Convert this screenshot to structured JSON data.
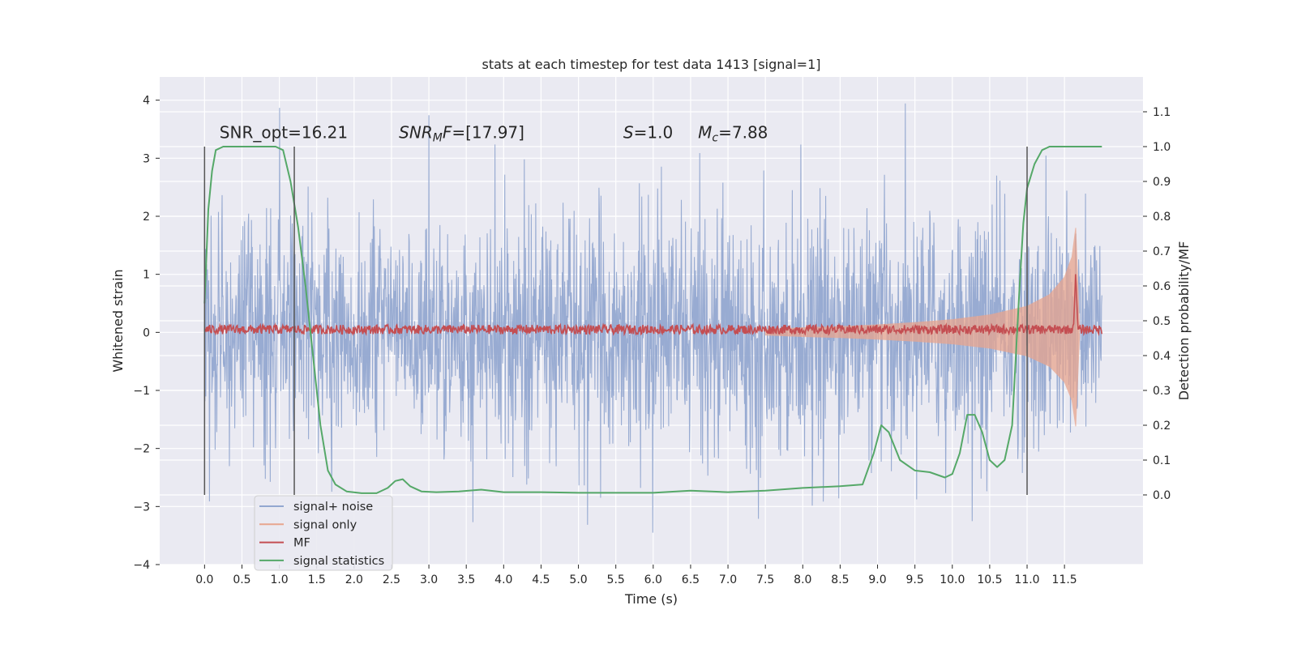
{
  "chart_data": {
    "type": "line",
    "title": "stats at each timestep for test data 1413 [signal=1]",
    "xlabel": "Time (s)",
    "ylabel": "Whitened strain",
    "y2label": "Detection probability/MF",
    "xlim": [
      -0.6,
      12.55
    ],
    "ylim": [
      -4.0,
      4.4
    ],
    "y2lim": [
      -0.2,
      1.2
    ],
    "x_ticks": [
      "0.0",
      "0.5",
      "1.0",
      "1.5",
      "2.0",
      "2.5",
      "3.0",
      "3.5",
      "4.0",
      "4.5",
      "5.0",
      "5.5",
      "6.0",
      "6.5",
      "7.0",
      "7.5",
      "8.0",
      "8.5",
      "9.0",
      "9.5",
      "10.0",
      "10.5",
      "11.0",
      "11.5"
    ],
    "y_ticks": [
      "4",
      "3",
      "2",
      "1",
      "0",
      "−1",
      "−2",
      "−3",
      "−4"
    ],
    "y2_ticks": [
      "1.1",
      "1.0",
      "0.9",
      "0.8",
      "0.7",
      "0.6",
      "0.5",
      "0.4",
      "0.3",
      "0.2",
      "0.1",
      "0.0"
    ],
    "grid": true,
    "legend_position": "lower-left",
    "colors": {
      "plot_bg": "#eaeaf2",
      "grid": "#ffffff",
      "signal_noise": "#93a8d0",
      "signal_only": "#e8a58e",
      "mf": "#c44e52",
      "stats": "#55a868",
      "vlines": "#555555"
    },
    "annotations": [
      {
        "text": "SNR_opt=16.21",
        "x": 0.2,
        "y": 3.35
      },
      {
        "text": "SNRMF=[17.97]",
        "x": 2.6,
        "y": 3.35
      },
      {
        "text": "S=1.0",
        "x": 5.6,
        "y": 3.35
      },
      {
        "text": "Mc=7.88",
        "x": 6.6,
        "y": 3.35
      }
    ],
    "vertical_lines": [
      0.0,
      1.2,
      11.0
    ],
    "series": [
      {
        "name": "signal+ noise",
        "description": "whitened noise with embedded signal, amplitude ~1 sigma, spikes to ~±3.5",
        "x_range": [
          0.0,
          12.0
        ],
        "typical_amplitude": 1.3,
        "peak_max": 4.1,
        "peak_min": -3.45
      },
      {
        "name": "signal only",
        "description": "chirp signal envelope growing from ~7.5s to merger at ~11.65s",
        "x": [
          7.5,
          8.0,
          8.5,
          9.0,
          9.5,
          10.0,
          10.5,
          11.0,
          11.3,
          11.5,
          11.6,
          11.65,
          11.7
        ],
        "envelope": [
          0.05,
          0.08,
          0.1,
          0.13,
          0.17,
          0.22,
          0.3,
          0.45,
          0.65,
          0.95,
          1.3,
          1.8,
          0.1
        ]
      },
      {
        "name": "MF",
        "description": "matched filter output near zero with a peak at ~11.65s",
        "x_range": [
          0.0,
          12.0
        ],
        "baseline": 0.05,
        "peak_x": 11.65,
        "peak_y": 1.0
      },
      {
        "name": "signal statistics",
        "axis": "right",
        "x": [
          0.0,
          0.05,
          0.1,
          0.15,
          0.25,
          0.4,
          0.6,
          0.8,
          0.95,
          1.05,
          1.15,
          1.25,
          1.35,
          1.45,
          1.55,
          1.65,
          1.75,
          1.9,
          2.1,
          2.3,
          2.45,
          2.55,
          2.65,
          2.75,
          2.9,
          3.1,
          3.4,
          3.7,
          4.0,
          4.5,
          5.0,
          5.5,
          6.0,
          6.5,
          7.0,
          7.5,
          8.0,
          8.5,
          8.8,
          8.95,
          9.05,
          9.15,
          9.3,
          9.5,
          9.7,
          9.9,
          10.0,
          10.1,
          10.2,
          10.3,
          10.4,
          10.5,
          10.6,
          10.7,
          10.8,
          10.85,
          10.9,
          10.95,
          11.0,
          11.1,
          11.2,
          11.3,
          11.45,
          11.6,
          11.7,
          11.8,
          11.9,
          12.0
        ],
        "y": [
          0.55,
          0.82,
          0.93,
          0.99,
          1.0,
          1.0,
          1.0,
          1.0,
          1.0,
          0.99,
          0.9,
          0.77,
          0.6,
          0.4,
          0.2,
          0.07,
          0.03,
          0.01,
          0.005,
          0.005,
          0.02,
          0.04,
          0.045,
          0.025,
          0.01,
          0.008,
          0.01,
          0.015,
          0.008,
          0.008,
          0.006,
          0.006,
          0.006,
          0.012,
          0.008,
          0.012,
          0.02,
          0.025,
          0.03,
          0.12,
          0.2,
          0.18,
          0.1,
          0.07,
          0.065,
          0.05,
          0.06,
          0.12,
          0.23,
          0.23,
          0.18,
          0.1,
          0.08,
          0.1,
          0.2,
          0.4,
          0.6,
          0.78,
          0.88,
          0.95,
          0.99,
          1.0,
          1.0,
          1.0,
          1.0,
          1.0,
          1.0,
          1.0
        ]
      }
    ]
  },
  "legend": {
    "items": [
      {
        "label": "signal+ noise",
        "color": "#93a8d0"
      },
      {
        "label": "signal only",
        "color": "#e8a58e"
      },
      {
        "label": "MF",
        "color": "#c44e52"
      },
      {
        "label": "signal statistics",
        "color": "#55a868"
      }
    ]
  }
}
